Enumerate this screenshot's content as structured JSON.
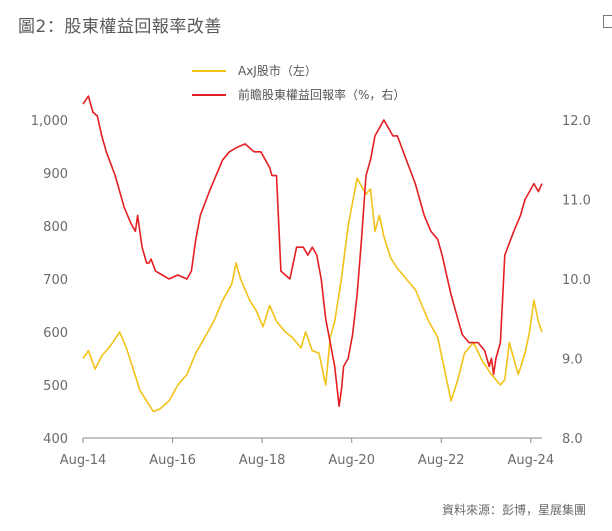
{
  "title": "圖2：股東權益回報率改善",
  "source": "資料來源：彭博，星展集團",
  "chart_data": {
    "type": "line",
    "xlabel": "",
    "ylabel": "",
    "ylabel_right": "",
    "x_ticks": [
      "Aug-14",
      "Aug-16",
      "Aug-18",
      "Aug-20",
      "Aug-22",
      "Aug-24"
    ],
    "x_range": [
      2014.58,
      2024.83
    ],
    "y_left": {
      "range": [
        400,
        1000
      ],
      "ticks": [
        "400",
        "500",
        "600",
        "700",
        "800",
        "900",
        "1,000"
      ]
    },
    "y_right": {
      "range": [
        8.0,
        12.0
      ],
      "ticks": [
        "8.0",
        "9.0",
        "10.0",
        "11.0",
        "12.0"
      ]
    },
    "grid": false,
    "legend_position": "top-center",
    "series": [
      {
        "name": "AxJ股市（左）",
        "axis": "left",
        "color": "#f2c218",
        "x": [
          2014.58,
          2014.7,
          2014.85,
          2015.0,
          2015.2,
          2015.4,
          2015.55,
          2015.7,
          2015.85,
          2016.0,
          2016.15,
          2016.3,
          2016.5,
          2016.7,
          2016.9,
          2017.1,
          2017.3,
          2017.5,
          2017.7,
          2017.9,
          2018.0,
          2018.1,
          2018.3,
          2018.45,
          2018.6,
          2018.75,
          2018.9,
          2019.1,
          2019.25,
          2019.45,
          2019.55,
          2019.7,
          2019.85,
          2020.0,
          2020.1,
          2020.2,
          2020.35,
          2020.5,
          2020.7,
          2020.9,
          2021.0,
          2021.1,
          2021.2,
          2021.3,
          2021.45,
          2021.6,
          2021.8,
          2022.0,
          2022.15,
          2022.3,
          2022.5,
          2022.65,
          2022.8,
          2022.95,
          2023.1,
          2023.3,
          2023.5,
          2023.7,
          2023.9,
          2024.0,
          2024.1,
          2024.2,
          2024.3,
          2024.45,
          2024.55,
          2024.65,
          2024.75,
          2024.83
        ],
        "values": [
          550,
          565,
          530,
          555,
          575,
          600,
          570,
          530,
          490,
          470,
          450,
          455,
          470,
          500,
          520,
          560,
          590,
          620,
          660,
          690,
          730,
          700,
          660,
          640,
          610,
          650,
          620,
          600,
          590,
          570,
          600,
          565,
          560,
          500,
          590,
          620,
          700,
          800,
          890,
          860,
          870,
          790,
          820,
          780,
          740,
          720,
          700,
          680,
          650,
          620,
          590,
          530,
          470,
          510,
          560,
          580,
          545,
          520,
          500,
          510,
          580,
          550,
          520,
          560,
          600,
          660,
          620,
          600
        ]
      },
      {
        "name": "前瞻股東權益回報率（%，右）",
        "axis": "right",
        "color": "#e41e22",
        "x": [
          2014.58,
          2014.7,
          2014.8,
          2014.9,
          2015.0,
          2015.1,
          2015.3,
          2015.5,
          2015.65,
          2015.75,
          2015.8,
          2015.9,
          2016.0,
          2016.05,
          2016.1,
          2016.2,
          2016.35,
          2016.5,
          2016.7,
          2016.9,
          2017.0,
          2017.1,
          2017.2,
          2017.4,
          2017.55,
          2017.7,
          2017.85,
          2018.0,
          2018.2,
          2018.4,
          2018.55,
          2018.65,
          2018.75,
          2018.8,
          2018.85,
          2018.9,
          2019.0,
          2019.2,
          2019.35,
          2019.5,
          2019.6,
          2019.7,
          2019.8,
          2019.9,
          2020.0,
          2020.1,
          2020.2,
          2020.3,
          2020.35,
          2020.4,
          2020.5,
          2020.6,
          2020.7,
          2020.8,
          2020.9,
          2021.0,
          2021.1,
          2021.2,
          2021.3,
          2021.4,
          2021.5,
          2021.6,
          2021.8,
          2022.0,
          2022.2,
          2022.35,
          2022.5,
          2022.6,
          2022.8,
          2022.95,
          2023.05,
          2023.2,
          2023.4,
          2023.55,
          2023.65,
          2023.7,
          2023.75,
          2023.8,
          2023.9,
          2024.0,
          2024.2,
          2024.35,
          2024.45,
          2024.55,
          2024.65,
          2024.75,
          2024.83
        ],
        "values": [
          12.2,
          12.3,
          12.1,
          12.05,
          11.8,
          11.6,
          11.3,
          10.9,
          10.7,
          10.6,
          10.8,
          10.4,
          10.2,
          10.2,
          10.25,
          10.1,
          10.05,
          10.0,
          10.05,
          10.0,
          10.1,
          10.5,
          10.8,
          11.1,
          11.3,
          11.5,
          11.6,
          11.65,
          11.7,
          11.6,
          11.6,
          11.5,
          11.4,
          11.3,
          11.3,
          11.3,
          10.1,
          10.0,
          10.4,
          10.4,
          10.3,
          10.4,
          10.3,
          10.0,
          9.5,
          9.2,
          8.9,
          8.4,
          8.6,
          8.9,
          9.0,
          9.3,
          9.8,
          10.5,
          11.3,
          11.5,
          11.8,
          11.9,
          12.0,
          11.9,
          11.8,
          11.8,
          11.5,
          11.2,
          10.8,
          10.6,
          10.5,
          10.3,
          9.8,
          9.5,
          9.3,
          9.2,
          9.2,
          9.1,
          8.9,
          9.0,
          8.8,
          9.0,
          9.2,
          10.3,
          10.6,
          10.8,
          11.0,
          11.1,
          11.2,
          11.1,
          11.2
        ]
      }
    ]
  }
}
